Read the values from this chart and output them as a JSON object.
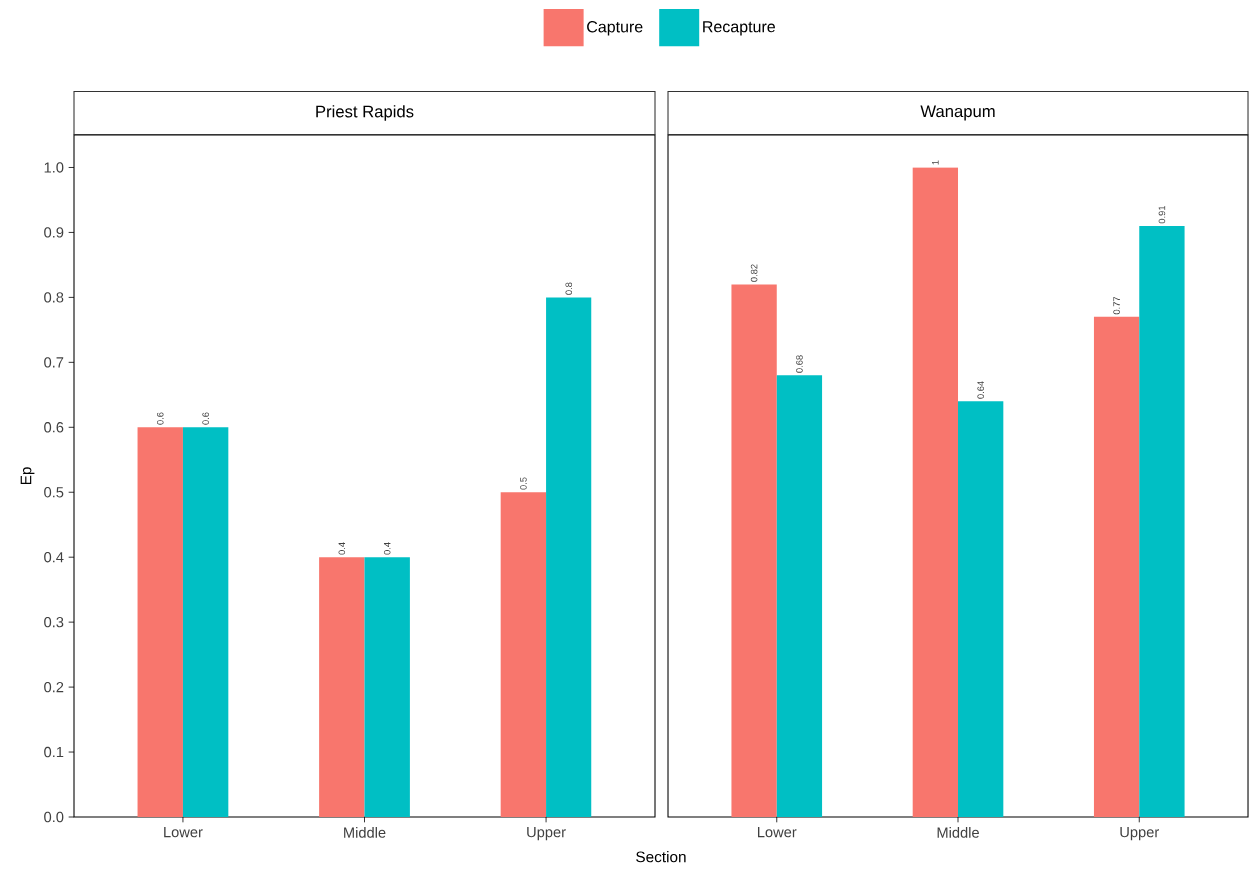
{
  "chart_data": [
    {
      "type": "bar",
      "title": "Priest Rapids",
      "xlabel": "Section",
      "ylabel": "Ep",
      "categories": [
        "Lower",
        "Middle",
        "Upper"
      ],
      "series": [
        {
          "name": "Capture",
          "color": "#f8766d",
          "values": [
            0.6,
            0.4,
            0.5
          ],
          "value_labels": [
            "0.6",
            "0.4",
            "0.5"
          ]
        },
        {
          "name": "Recapture",
          "color": "#00bfc4",
          "values": [
            0.6,
            0.4,
            0.8
          ],
          "value_labels": [
            "0.6",
            "0.4",
            "0.8"
          ]
        }
      ],
      "ylim": [
        0,
        1.05
      ],
      "yticks": [
        {
          "value": 0,
          "label": "0.0"
        },
        {
          "value": 0.1,
          "label": "0.1"
        },
        {
          "value": 0.2,
          "label": "0.2"
        },
        {
          "value": 0.3,
          "label": "0.3"
        },
        {
          "value": 0.4,
          "label": "0.4"
        },
        {
          "value": 0.5,
          "label": "0.5"
        },
        {
          "value": 0.6,
          "label": "0.6"
        },
        {
          "value": 0.7,
          "label": "0.7"
        },
        {
          "value": 0.8,
          "label": "0.8"
        },
        {
          "value": 0.9,
          "label": "0.9"
        },
        {
          "value": 1.0,
          "label": "1.0"
        }
      ],
      "legend": "top"
    },
    {
      "type": "bar",
      "title": "Wanapum",
      "categories": [
        "Lower",
        "Middle",
        "Upper"
      ],
      "series": [
        {
          "color": "#f8766d",
          "values": [
            0.82,
            1,
            0.77
          ],
          "value_labels": [
            "0.82",
            "1",
            "0.77"
          ]
        },
        {
          "color": "#00bfc4",
          "values": [
            0.68,
            0.64,
            0.91
          ],
          "value_labels": [
            "0.68",
            "0.64",
            "0.91"
          ]
        }
      ],
      "ylim": [
        0,
        1.05
      ],
      "tick_labels": "x"
    }
  ]
}
